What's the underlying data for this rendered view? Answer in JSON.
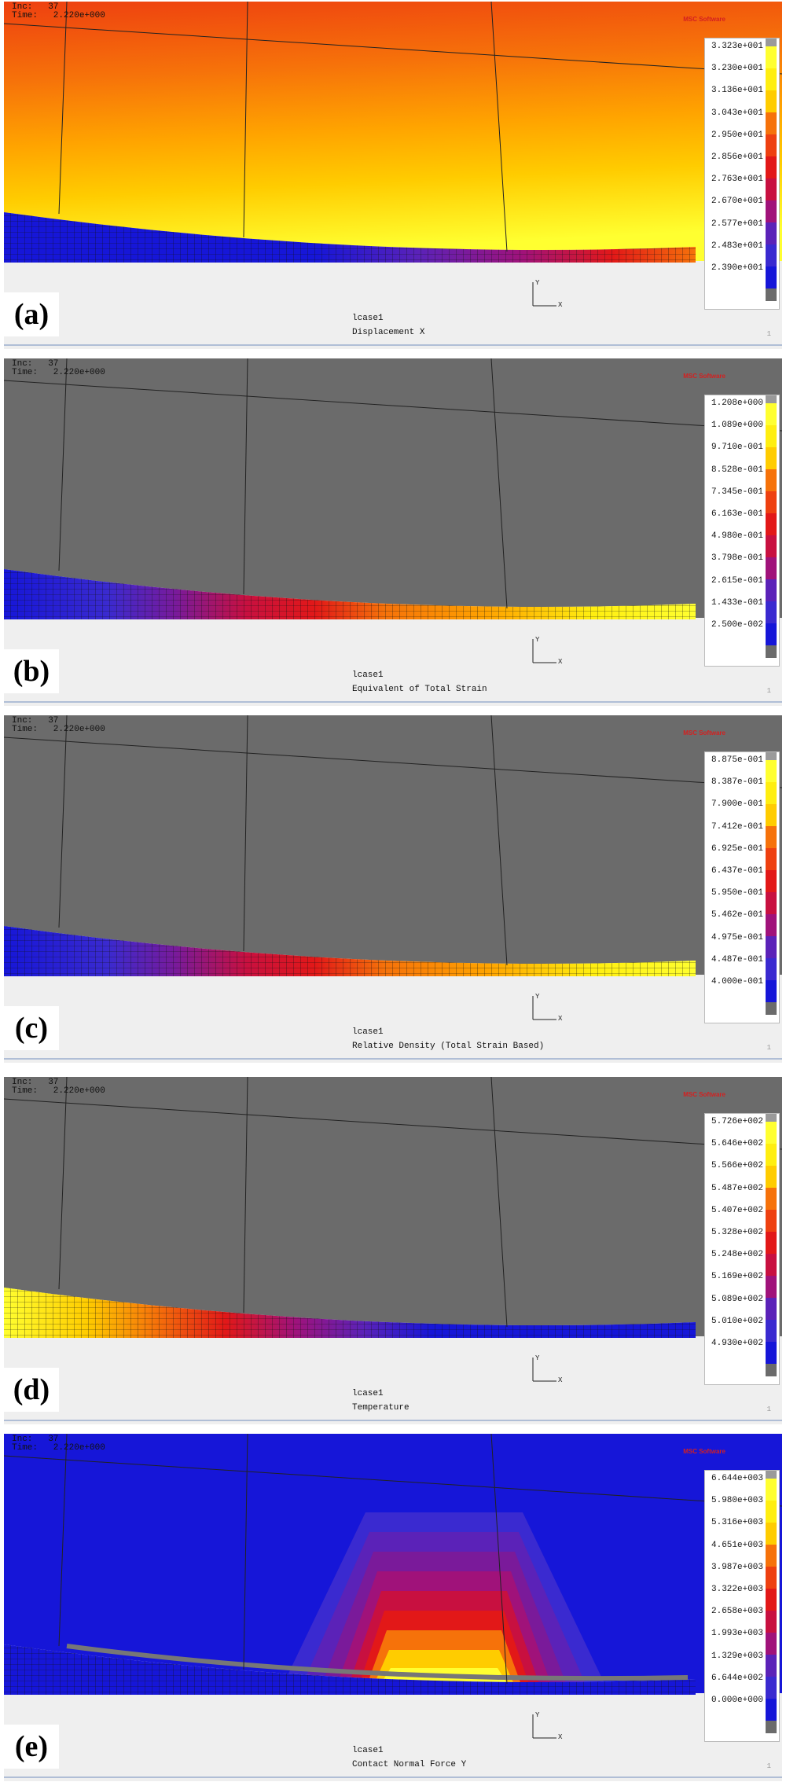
{
  "palette": [
    "#1616d8",
    "#3a2ad0",
    "#5b22b8",
    "#7a1a9a",
    "#a0127a",
    "#c81040",
    "#e21818",
    "#ee4010",
    "#f6720a",
    "#ffa400",
    "#ffcc00",
    "#ffee10",
    "#ffff30"
  ],
  "panels": [
    {
      "tag": "(a)",
      "inc": "Inc:   37",
      "time": "Time:   2.220e+000",
      "case": "lcase1",
      "variable": "Displacement X",
      "labels": [
        "3.323e+001",
        "3.230e+001",
        "3.136e+001",
        "3.043e+001",
        "2.950e+001",
        "2.856e+001",
        "2.763e+001",
        "2.670e+001",
        "2.577e+001",
        "2.483e+001",
        "2.390e+001"
      ]
    },
    {
      "tag": "(b)",
      "inc": "Inc:   37",
      "time": "Time:   2.220e+000",
      "case": "lcase1",
      "variable": "Equivalent of Total Strain",
      "labels": [
        "1.208e+000",
        "1.089e+000",
        "9.710e-001",
        "8.528e-001",
        "7.345e-001",
        "6.163e-001",
        "4.980e-001",
        "3.798e-001",
        "2.615e-001",
        "1.433e-001",
        "2.500e-002"
      ]
    },
    {
      "tag": "(c)",
      "inc": "Inc:   37",
      "time": "Time:   2.220e+000",
      "case": "lcase1",
      "variable": "Relative Density (Total Strain Based)",
      "labels": [
        "8.875e-001",
        "8.387e-001",
        "7.900e-001",
        "7.412e-001",
        "6.925e-001",
        "6.437e-001",
        "5.950e-001",
        "5.462e-001",
        "4.975e-001",
        "4.487e-001",
        "4.000e-001"
      ]
    },
    {
      "tag": "(d)",
      "inc": "Inc:   37",
      "time": "Time:   2.220e+000",
      "case": "lcase1",
      "variable": "Temperature",
      "labels": [
        "5.726e+002",
        "5.646e+002",
        "5.566e+002",
        "5.487e+002",
        "5.407e+002",
        "5.328e+002",
        "5.248e+002",
        "5.169e+002",
        "5.089e+002",
        "5.010e+002",
        "4.930e+002"
      ]
    },
    {
      "tag": "(e)",
      "inc": "Inc:   37",
      "time": "Time:   2.220e+000",
      "case": "lcase1",
      "variable": "Contact Normal Force Y",
      "labels": [
        "6.644e+003",
        "5.980e+003",
        "5.316e+003",
        "4.651e+003",
        "3.987e+003",
        "3.322e+003",
        "2.658e+003",
        "1.993e+003",
        "1.329e+003",
        "6.644e+002",
        "0.000e+000"
      ]
    }
  ],
  "logo_text": "MSC Software",
  "axis": {
    "x": "X",
    "y": "Y"
  },
  "corner_mark": "1"
}
